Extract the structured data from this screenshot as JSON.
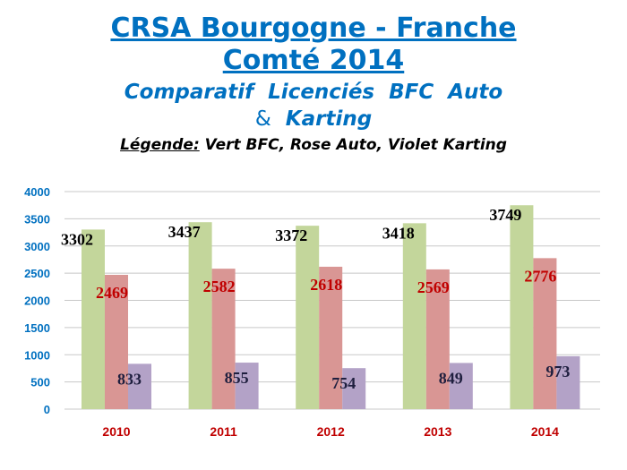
{
  "header": {
    "title_line1": "CRSA Bourgogne - Franche",
    "title_line2": "Comté 2014",
    "subtitle_line1": "Comparatif  Licenciés  BFC  Auto",
    "subtitle_amp": "&",
    "subtitle_line2": "Karting",
    "legend_label": "Légende:",
    "legend_text": " Vert BFC, Rose Auto, Violet Karting"
  },
  "colors": {
    "title": "#0070c0",
    "axis_labels": "#0070c0",
    "category_labels": "#c00000",
    "bfc": "#c3d69b",
    "auto": "#d99694",
    "karting": "#b3a2c7",
    "label_bfc": "#000000",
    "label_auto": "#c00000",
    "label_karting": "#1f1f3f",
    "grid": "#c8c8c8"
  },
  "chart_data": {
    "type": "bar",
    "categories": [
      "2010",
      "2011",
      "2012",
      "2013",
      "2014"
    ],
    "series": [
      {
        "key": "bfc",
        "values": [
          3302,
          3437,
          3372,
          3418,
          3749
        ]
      },
      {
        "key": "auto",
        "values": [
          2469,
          2582,
          2618,
          2569,
          2776
        ]
      },
      {
        "key": "karting",
        "values": [
          833,
          855,
          754,
          849,
          973
        ]
      }
    ],
    "yticks": [
      0,
      500,
      1000,
      1500,
      2000,
      2500,
      3000,
      3500,
      4000
    ],
    "ylim": [
      0,
      4000
    ],
    "grid": true,
    "legend": "none"
  }
}
